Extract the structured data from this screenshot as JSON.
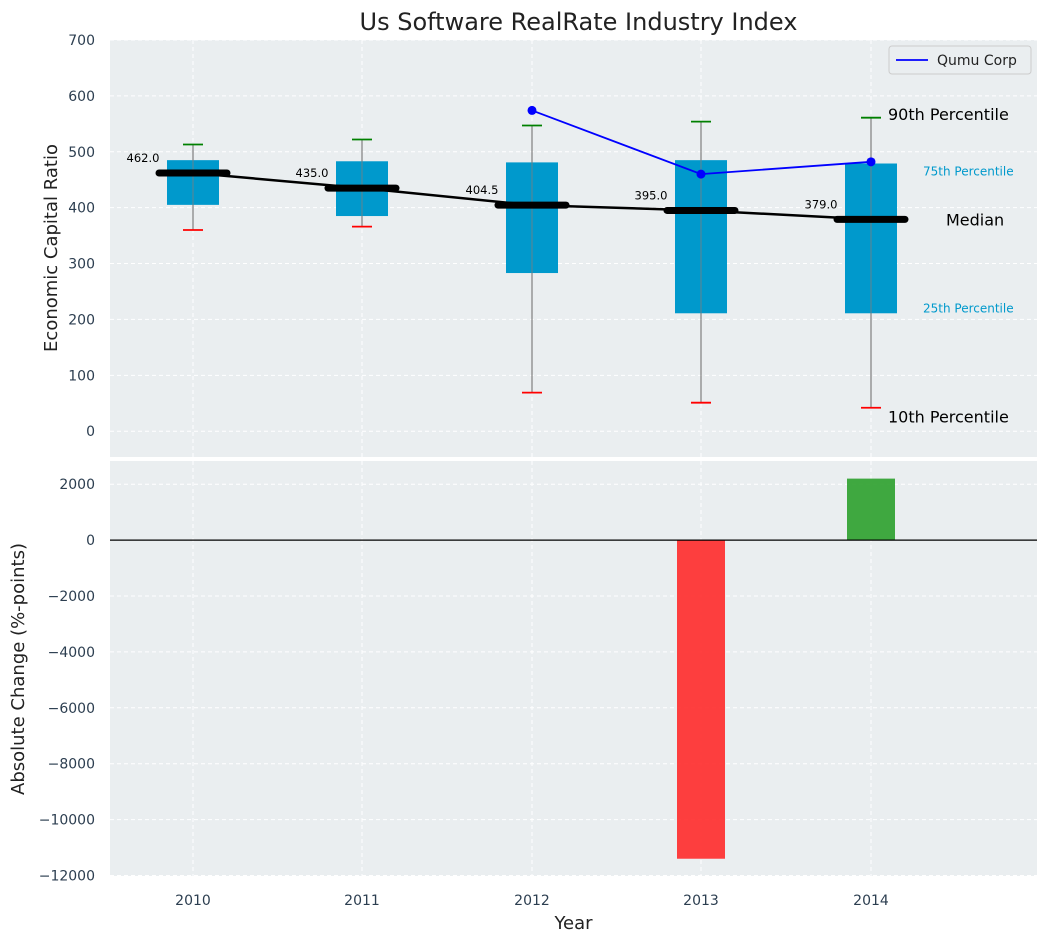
{
  "chart_data": [
    {
      "type": "box",
      "title": "Us Software RealRate Industry Index",
      "ylabel": "Economic Capital Ratio",
      "ylim": [
        -60,
        700
      ],
      "yticks": [
        0,
        100,
        200,
        300,
        400,
        500,
        600,
        700
      ],
      "categories": [
        "2010",
        "2011",
        "2012",
        "2013",
        "2014"
      ],
      "percentile_10": [
        360,
        366,
        69,
        51,
        42
      ],
      "percentile_25": [
        405,
        385,
        283,
        211,
        211
      ],
      "median": [
        462.0,
        435.0,
        404.5,
        395.0,
        379.0
      ],
      "median_labels": [
        "462.0",
        "435.0",
        "404.5",
        "395.0",
        "379.0"
      ],
      "percentile_75": [
        485,
        483,
        481,
        485,
        479
      ],
      "percentile_90": [
        513,
        522,
        547,
        554,
        561
      ],
      "company_series": {
        "name": "Qumu Corp",
        "x": [
          "2012",
          "2013",
          "2014"
        ],
        "values": [
          574,
          460,
          482
        ]
      },
      "annotations": {
        "p90": "90th Percentile",
        "p75": "75th Percentile",
        "median": "Median",
        "p25": "25th Percentile",
        "p10": "10th Percentile"
      },
      "legend_position": "top-right",
      "grid": true,
      "colors": {
        "box": "#0099cc",
        "median_line": "#000000",
        "company": "#0000ff",
        "p90_whisker": "#008000",
        "p10_whisker": "#ff0000",
        "p75_p25_text": "#0099cc",
        "background": "#eaeef0"
      }
    },
    {
      "type": "bar",
      "ylabel": "Absolute Change (%-points)",
      "xlabel": "Year",
      "ylim": [
        -12000,
        2800
      ],
      "yticks": [
        2000,
        0,
        -2000,
        -4000,
        -6000,
        -8000,
        -10000,
        -12000
      ],
      "ytick_labels": [
        "2000",
        "0",
        "−2000",
        "−4000",
        "−6000",
        "−8000",
        "−10000",
        "−12000"
      ],
      "categories": [
        "2010",
        "2011",
        "2012",
        "2013",
        "2014"
      ],
      "values": [
        null,
        null,
        null,
        -11400,
        2200
      ],
      "colors": {
        "positive": "#2ca02c",
        "negative": "#ff2a2a"
      },
      "grid": true
    }
  ]
}
